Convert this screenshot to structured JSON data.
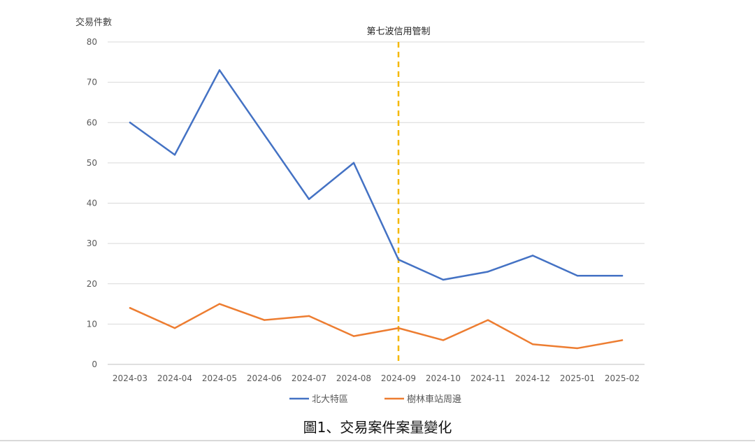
{
  "chart_data": {
    "type": "line",
    "categories": [
      "2024-03",
      "2024-04",
      "2024-05",
      "2024-06",
      "2024-07",
      "2024-08",
      "2024-09",
      "2024-10",
      "2024-11",
      "2024-12",
      "2025-01",
      "2025-02"
    ],
    "series": [
      {
        "name": "北大特區",
        "color": "#4472c4",
        "values": [
          60,
          52,
          73,
          57,
          41,
          50,
          26,
          21,
          23,
          27,
          22,
          22
        ]
      },
      {
        "name": "樹林車站周邊",
        "color": "#ed7d31",
        "values": [
          14,
          9,
          15,
          11,
          12,
          7,
          9,
          6,
          11,
          5,
          4,
          6
        ]
      }
    ],
    "ylabel": "交易件數",
    "xlabel": "",
    "ylim": [
      0,
      80
    ],
    "yticks": [
      "0",
      "10",
      "20",
      "30",
      "40",
      "50",
      "60",
      "70",
      "80"
    ],
    "grid": true,
    "legend": "bottom",
    "annotation": {
      "label": "第七波信用管制",
      "at": "2024-09",
      "color": "#f5b800"
    }
  },
  "caption": "圖1、交易案件案量變化"
}
